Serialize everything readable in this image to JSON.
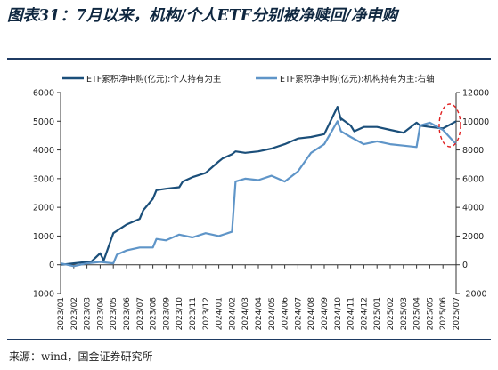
{
  "figure_title": "图表31：7月以来，机构/个人ETF分别被净赎回/净申购",
  "source_note": "来源：wind，国金证券研究所",
  "colors": {
    "retail": "#1b4f7a",
    "institution": "#5f95c8",
    "highlight": "#e02020"
  },
  "chart_data": {
    "type": "line",
    "x_tick_labels": [
      "2023/01",
      "2023/02",
      "2023/03",
      "2023/04",
      "2023/05",
      "2023/06",
      "2023/07",
      "2023/08",
      "2023/09",
      "2023/10",
      "2023/11",
      "2023/12",
      "2024/01",
      "2024/02",
      "2024/03",
      "2024/04",
      "2024/05",
      "2024/06",
      "2024/07",
      "2024/08",
      "2024/09",
      "2024/10",
      "2024/11",
      "2024/12",
      "2025/01",
      "2025/02",
      "2025/03",
      "2025/04",
      "2025/05",
      "2025/06",
      "2025/07"
    ],
    "left_axis": {
      "ylim": [
        -1000,
        6000
      ],
      "ticks": [
        -1000,
        0,
        1000,
        2000,
        3000,
        4000,
        5000,
        6000
      ]
    },
    "right_axis": {
      "ylim": [
        -2000,
        12000
      ],
      "ticks": [
        -2000,
        0,
        2000,
        4000,
        6000,
        8000,
        10000,
        12000
      ]
    },
    "legend_position": "top",
    "series": [
      {
        "name": "ETF累积净申购(亿元):个人持有为主",
        "axis": "left",
        "x": [
          "2023/01",
          "2023/02",
          "2023/03",
          "2023/03",
          "2023/04",
          "2023/04",
          "2023/05",
          "2023/06",
          "2023/07",
          "2023/07",
          "2023/08",
          "2023/08",
          "2023/09",
          "2023/10",
          "2023/10",
          "2023/11",
          "2023/12",
          "2024/01",
          "2024/01",
          "2024/02",
          "2024/02",
          "2024/03",
          "2024/04",
          "2024/05",
          "2024/06",
          "2024/07",
          "2024/08",
          "2024/09",
          "2024/10",
          "2024/10",
          "2024/10",
          "2024/11",
          "2024/11",
          "2024/12",
          "2025/01",
          "2025/02",
          "2025/03",
          "2025/04",
          "2025/04",
          "2025/05",
          "2025/06",
          "2025/07"
        ],
        "values": [
          0,
          50,
          100,
          80,
          400,
          150,
          1100,
          1400,
          1600,
          1900,
          2300,
          2600,
          2650,
          2700,
          2900,
          3050,
          3200,
          3600,
          3700,
          3850,
          3950,
          3900,
          3950,
          4050,
          4200,
          4400,
          4450,
          4550,
          5500,
          5050,
          5100,
          4850,
          4650,
          4800,
          4800,
          4700,
          4600,
          4950,
          4850,
          4800,
          4750,
          5000
        ]
      },
      {
        "name": "ETF累积净申购(亿元):机构持有为主:右轴",
        "axis": "right",
        "x": [
          "2023/01",
          "2023/02",
          "2023/03",
          "2023/04",
          "2023/05",
          "2023/05",
          "2023/06",
          "2023/07",
          "2023/08",
          "2023/08",
          "2023/09",
          "2023/10",
          "2023/11",
          "2023/12",
          "2024/01",
          "2024/02",
          "2024/02",
          "2024/03",
          "2024/04",
          "2024/05",
          "2024/06",
          "2024/07",
          "2024/08",
          "2024/09",
          "2024/10",
          "2024/10",
          "2024/11",
          "2024/12",
          "2025/01",
          "2025/02",
          "2025/03",
          "2025/04",
          "2025/04",
          "2025/05",
          "2025/06",
          "2025/07"
        ],
        "values": [
          100,
          -100,
          100,
          200,
          100,
          700,
          1000,
          1200,
          1200,
          1800,
          1700,
          2100,
          1900,
          2200,
          2000,
          2300,
          5800,
          6000,
          5900,
          6200,
          5800,
          6500,
          7800,
          8400,
          10000,
          9300,
          8900,
          8400,
          8600,
          8400,
          8300,
          8200,
          9700,
          9900,
          9400,
          8400
        ]
      }
    ]
  }
}
